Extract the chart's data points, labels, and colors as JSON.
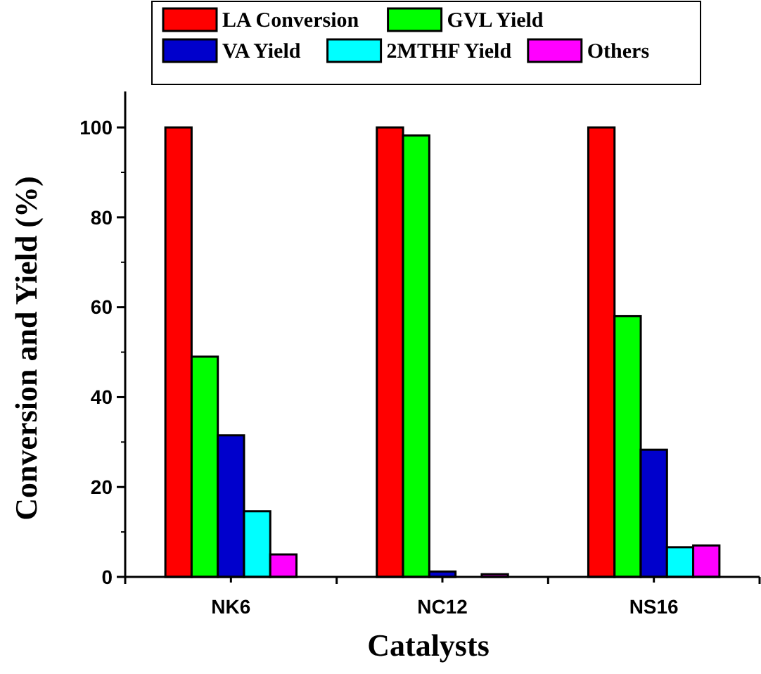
{
  "chart_data": {
    "type": "bar",
    "xlabel": "Catalysts",
    "ylabel": "Conversion and Yield (%)",
    "categories": [
      "NK6",
      "NC12",
      "NS16"
    ],
    "series": [
      {
        "name": "LA Conversion",
        "color": "#ff0000",
        "values": [
          100,
          100,
          100
        ]
      },
      {
        "name": "GVL Yield",
        "color": "#00ff00",
        "values": [
          49,
          98.2,
          58
        ]
      },
      {
        "name": "VA Yield",
        "color": "#0000cc",
        "values": [
          31.5,
          1.2,
          28.3
        ]
      },
      {
        "name": "2MTHF Yield",
        "color": "#00ffff",
        "values": [
          14.6,
          0,
          6.6
        ]
      },
      {
        "name": "Others",
        "color": "#ff00ff",
        "values": [
          5,
          0.6,
          7
        ]
      }
    ],
    "ylim": [
      0,
      108
    ],
    "yticks": [
      0,
      20,
      40,
      60,
      80,
      100
    ],
    "legend": "top"
  }
}
